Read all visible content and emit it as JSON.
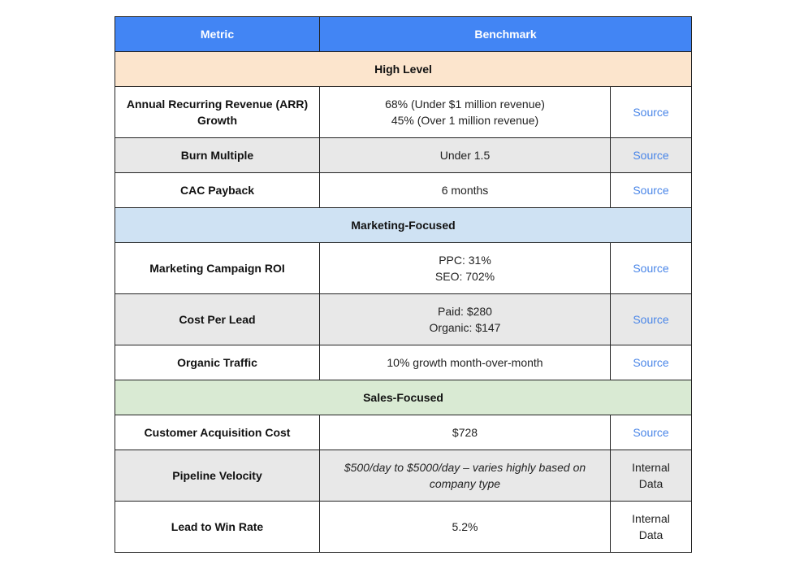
{
  "table": {
    "headers": [
      "Metric",
      "Benchmark"
    ],
    "sections": [
      {
        "title": "High Level",
        "rows": [
          {
            "metric_lines": [
              "Annual Recurring Revenue (ARR)",
              "Growth"
            ],
            "benchmark_lines": [
              "68% (Under $1 million revenue)",
              "45% (Over 1 million revenue)"
            ],
            "source": "Source"
          },
          {
            "metric_lines": [
              "Burn Multiple"
            ],
            "benchmark_lines": [
              "Under 1.5"
            ],
            "source": "Source"
          },
          {
            "metric_lines": [
              "CAC Payback"
            ],
            "benchmark_lines": [
              "6 months"
            ],
            "source": "Source"
          }
        ]
      },
      {
        "title": "Marketing-Focused",
        "rows": [
          {
            "metric_lines": [
              "Marketing Campaign ROI"
            ],
            "benchmark_lines": [
              "PPC: 31%",
              "SEO: 702%"
            ],
            "source": "Source"
          },
          {
            "metric_lines": [
              "Cost Per Lead"
            ],
            "benchmark_lines": [
              "Paid: $280",
              "Organic: $147"
            ],
            "source": "Source"
          },
          {
            "metric_lines": [
              "Organic Traffic"
            ],
            "benchmark_lines": [
              "10% growth month-over-month"
            ],
            "source": "Source"
          }
        ]
      },
      {
        "title": "Sales-Focused",
        "rows": [
          {
            "metric_lines": [
              "Customer Acquisition Cost"
            ],
            "benchmark_lines": [
              "$728"
            ],
            "source": "Source"
          },
          {
            "metric_lines": [
              "Pipeline Velocity"
            ],
            "benchmark_lines": [
              "$500/day to $5000/day – varies highly based on",
              "company type"
            ],
            "source_lines": [
              "Internal",
              "Data"
            ]
          },
          {
            "metric_lines": [
              "Lead to Win Rate"
            ],
            "benchmark_lines": [
              "5.2%"
            ],
            "source_lines": [
              "Internal",
              "Data"
            ]
          }
        ]
      }
    ]
  },
  "colors": {
    "header_bg": "#4285f4",
    "high_level_bg": "#fce5cd",
    "marketing_bg": "#cfe2f3",
    "sales_bg": "#d9ead3",
    "gray_row_bg": "#e8e8e8",
    "link": "#4a86e8"
  }
}
